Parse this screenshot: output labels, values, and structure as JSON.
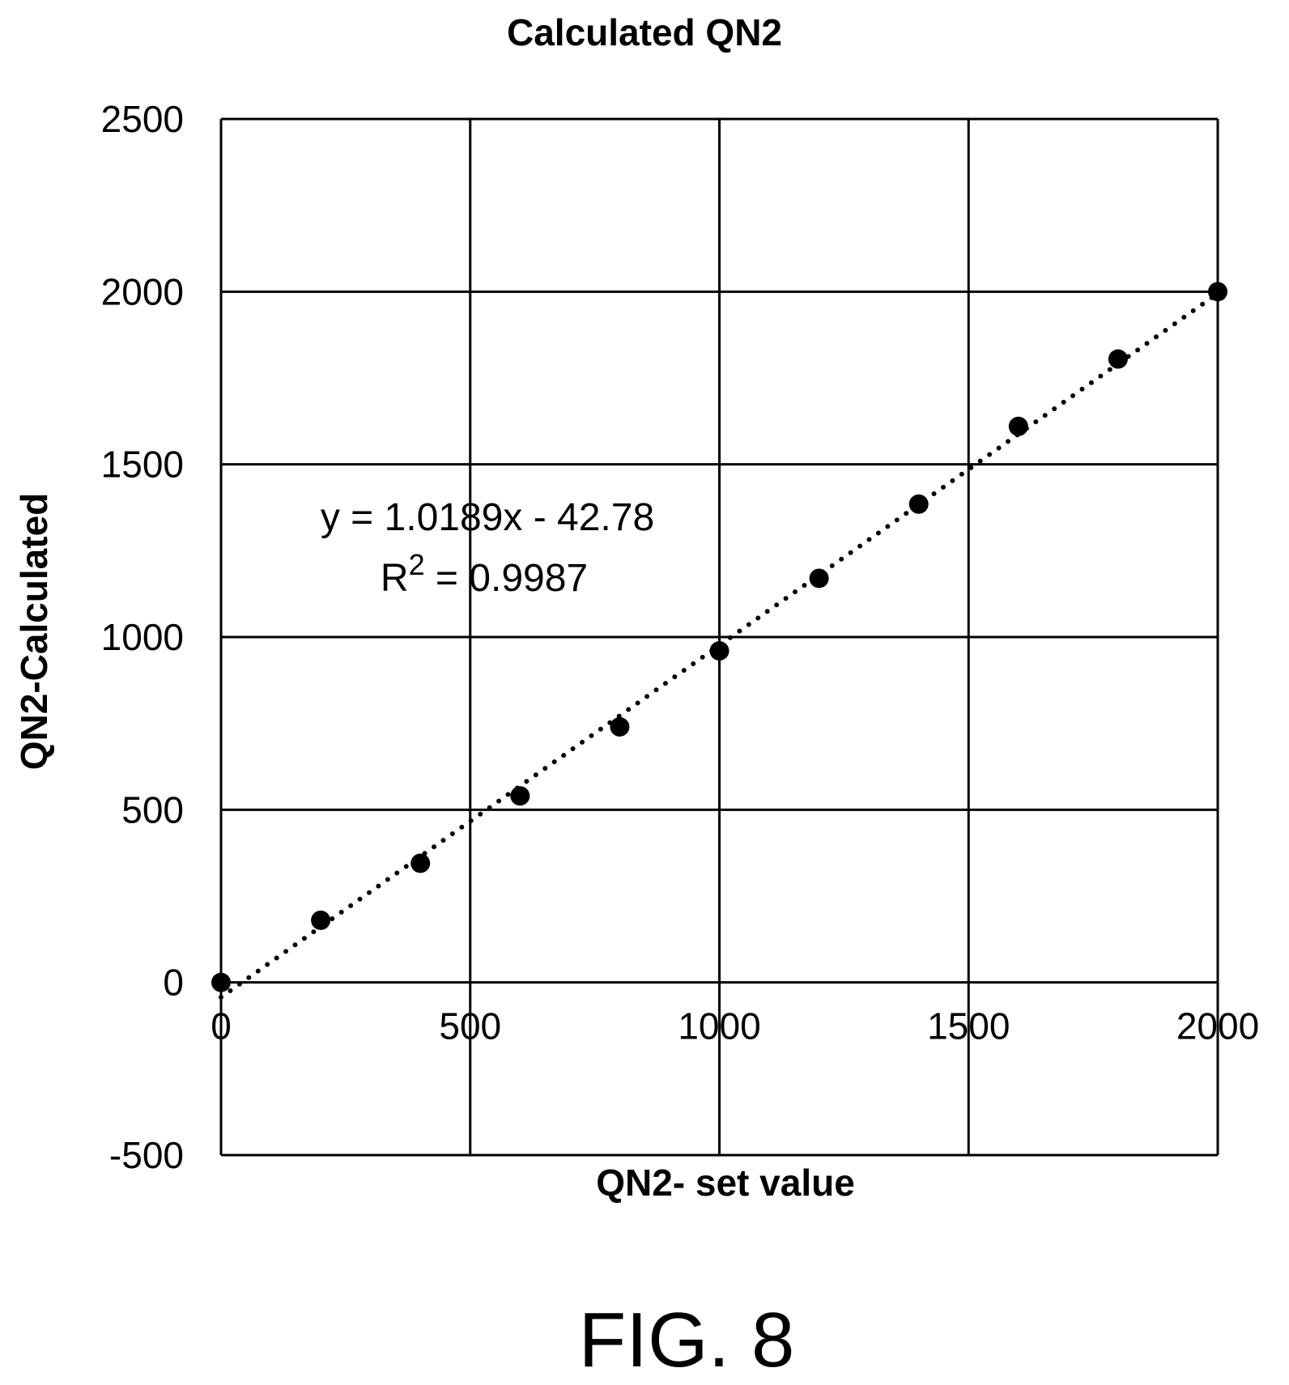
{
  "chart_data": {
    "type": "scatter",
    "title": "Calculated QN2",
    "xlabel": "QN2- set value",
    "ylabel": "QN2-Calculated",
    "xlim": [
      0,
      2000
    ],
    "ylim": [
      -500,
      2500
    ],
    "x_ticks": [
      0,
      500,
      1000,
      1500,
      2000
    ],
    "x_tick_labels": [
      "0",
      "500",
      "1000",
      "1500",
      "2000"
    ],
    "y_ticks": [
      -500,
      0,
      500,
      1000,
      1500,
      2000,
      2500
    ],
    "y_tick_labels": [
      "-500",
      "0",
      "500",
      "1000",
      "1500",
      "2000",
      "2500"
    ],
    "grid": true,
    "legend": "none",
    "series": [
      {
        "x": [
          0,
          200,
          400,
          600,
          800,
          1000,
          1200,
          1400,
          1600,
          1800,
          2000
        ],
        "y": [
          0,
          180,
          345,
          540,
          740,
          960,
          1170,
          1385,
          1610,
          1805,
          2000
        ]
      }
    ],
    "trendline": {
      "style": "dotted",
      "slope": 1.0189,
      "intercept": -42.78
    },
    "annotations": {
      "equation": "y = 1.0189x - 42.78",
      "r2_prefix": "R",
      "r2_superscript": "2",
      "r2_value": " = 0.9987"
    },
    "colors": {
      "marker": "#000000",
      "grid": "#000000",
      "trendline": "#000000"
    }
  },
  "figure_label": "FIG. 8"
}
